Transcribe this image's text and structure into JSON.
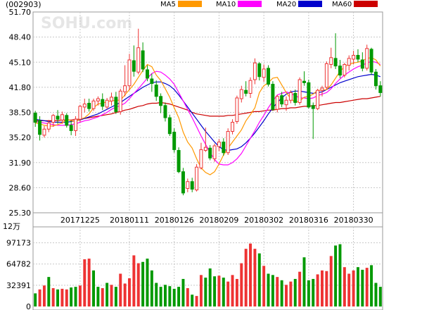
{
  "header": {
    "code": "(002903)",
    "watermark": "SOHU.com"
  },
  "legend": [
    {
      "name": "MA5",
      "color": "#ff9900"
    },
    {
      "name": "MA10",
      "color": "#ff00ff"
    },
    {
      "name": "MA20",
      "color": "#0000cc"
    },
    {
      "name": "MA60",
      "color": "#cc0000"
    }
  ],
  "colors": {
    "up": "#ee3333",
    "down": "#009900"
  },
  "chart_data": [
    {
      "type": "candlestick",
      "title": "",
      "ylim": [
        25.3,
        51.7
      ],
      "y_ticks": [
        "51.70",
        "48.40",
        "45.10",
        "41.80",
        "38.50",
        "35.20",
        "31.90",
        "28.60",
        "25.30"
      ],
      "x_tick_labels": [
        "20171225",
        "20180111",
        "20180126",
        "20180209",
        "20180302",
        "20180316",
        "20180330"
      ],
      "x_tick_index": [
        10,
        21,
        31,
        41,
        51,
        61,
        71
      ],
      "grid": true,
      "candles": [
        [
          38.4,
          38.7,
          36.6,
          37.2
        ],
        [
          37.4,
          38.0,
          34.8,
          35.6
        ],
        [
          35.5,
          36.7,
          35.2,
          36.3
        ],
        [
          36.3,
          37.5,
          35.9,
          37.1
        ],
        [
          37.2,
          38.3,
          36.6,
          38.1
        ],
        [
          38.0,
          38.8,
          37.0,
          37.6
        ],
        [
          37.5,
          38.6,
          37.0,
          38.2
        ],
        [
          38.1,
          38.4,
          36.5,
          36.8
        ],
        [
          36.8,
          37.4,
          35.5,
          36.1
        ],
        [
          36.1,
          38.0,
          35.4,
          37.6
        ],
        [
          37.6,
          39.5,
          37.2,
          39.3
        ],
        [
          39.2,
          40.3,
          38.5,
          39.6
        ],
        [
          39.7,
          40.3,
          38.6,
          39.0
        ],
        [
          39.0,
          40.3,
          38.7,
          40.0
        ],
        [
          40.0,
          40.6,
          39.4,
          40.3
        ],
        [
          40.2,
          41.0,
          38.8,
          39.3
        ],
        [
          39.2,
          40.4,
          38.9,
          40.1
        ],
        [
          40.0,
          41.1,
          39.4,
          40.5
        ],
        [
          40.5,
          41.2,
          38.3,
          38.6
        ],
        [
          38.6,
          41.6,
          38.2,
          41.3
        ],
        [
          41.2,
          44.7,
          40.6,
          42.0
        ],
        [
          42.0,
          46.2,
          41.4,
          45.4
        ],
        [
          45.3,
          47.3,
          43.2,
          43.9
        ],
        [
          43.8,
          49.5,
          43.5,
          47.0
        ],
        [
          46.6,
          47.7,
          43.8,
          44.2
        ],
        [
          44.1,
          44.7,
          42.6,
          43.0
        ],
        [
          42.9,
          43.6,
          41.2,
          42.3
        ],
        [
          42.1,
          42.7,
          40.0,
          40.6
        ],
        [
          40.6,
          41.0,
          38.4,
          39.4
        ],
        [
          39.4,
          39.8,
          37.3,
          37.8
        ],
        [
          37.8,
          38.2,
          35.4,
          35.7
        ],
        [
          35.9,
          36.4,
          33.2,
          33.6
        ],
        [
          33.5,
          33.9,
          30.5,
          30.7
        ],
        [
          30.7,
          31.2,
          27.6,
          27.9
        ],
        [
          28.5,
          29.8,
          28.0,
          29.4
        ],
        [
          29.4,
          29.9,
          28.0,
          28.4
        ],
        [
          28.3,
          31.7,
          28.1,
          31.3
        ],
        [
          31.2,
          34.5,
          31.0,
          33.6
        ],
        [
          33.5,
          36.5,
          33.3,
          33.9
        ],
        [
          33.8,
          34.2,
          32.2,
          32.5
        ],
        [
          32.4,
          34.4,
          32.0,
          34.1
        ],
        [
          34.0,
          35.0,
          33.4,
          34.6
        ],
        [
          34.6,
          35.1,
          32.8,
          33.2
        ],
        [
          33.2,
          36.4,
          32.9,
          36.0
        ],
        [
          36.0,
          37.6,
          35.6,
          37.2
        ],
        [
          37.3,
          40.7,
          37.0,
          40.4
        ],
        [
          40.3,
          42.0,
          39.8,
          41.5
        ],
        [
          41.4,
          42.6,
          40.6,
          41.0
        ],
        [
          41.0,
          43.1,
          40.4,
          42.7
        ],
        [
          42.8,
          45.6,
          42.2,
          45.0
        ],
        [
          44.9,
          45.1,
          42.7,
          43.2
        ],
        [
          43.1,
          44.8,
          42.5,
          44.2
        ],
        [
          44.3,
          44.7,
          41.9,
          42.2
        ],
        [
          42.2,
          42.6,
          38.7,
          38.9
        ],
        [
          38.9,
          40.8,
          38.5,
          40.6
        ],
        [
          40.7,
          41.2,
          39.2,
          39.6
        ],
        [
          39.5,
          40.6,
          38.7,
          40.1
        ],
        [
          40.1,
          41.4,
          39.7,
          41.1
        ],
        [
          41.0,
          41.5,
          39.4,
          39.8
        ],
        [
          39.8,
          43.1,
          39.5,
          42.8
        ],
        [
          42.6,
          43.9,
          42.0,
          42.4
        ],
        [
          42.4,
          42.8,
          39.0,
          39.2
        ],
        [
          39.4,
          39.8,
          35.0,
          39.0
        ],
        [
          39.0,
          41.6,
          38.8,
          41.4
        ],
        [
          41.4,
          42.0,
          40.6,
          41.7
        ],
        [
          41.8,
          45.2,
          41.5,
          44.9
        ],
        [
          44.8,
          47.0,
          44.3,
          45.7
        ],
        [
          45.6,
          48.9,
          44.2,
          44.6
        ],
        [
          44.6,
          45.4,
          43.0,
          43.4
        ],
        [
          43.4,
          45.0,
          43.1,
          44.8
        ],
        [
          44.7,
          46.0,
          44.0,
          45.6
        ],
        [
          45.5,
          46.6,
          44.8,
          46.0
        ],
        [
          46.0,
          46.8,
          45.1,
          45.5
        ],
        [
          45.4,
          46.4,
          43.9,
          44.3
        ],
        [
          44.3,
          47.4,
          44.0,
          46.9
        ],
        [
          46.8,
          47.0,
          43.4,
          43.8
        ],
        [
          43.8,
          44.2,
          41.5,
          42.0
        ],
        [
          42.0,
          42.6,
          40.6,
          41.1
        ]
      ],
      "ma5": [
        37.1,
        37.0,
        36.8,
        36.7,
        36.7,
        36.9,
        37.1,
        37.6,
        37.4,
        37.3,
        37.6,
        37.8,
        38.3,
        39.1,
        39.6,
        39.7,
        39.9,
        40.0,
        40.1,
        40.1,
        40.8,
        41.5,
        42.2,
        43.1,
        44.0,
        44.8,
        44.5,
        43.4,
        42.7,
        41.6,
        40.5,
        39.1,
        37.8,
        35.9,
        34.6,
        33.8,
        32.4,
        31.2,
        30.6,
        30.3,
        30.7,
        31.7,
        32.9,
        33.8,
        34.6,
        35.4,
        36.2,
        37.4,
        38.2,
        39.1,
        41.1,
        42.0,
        42.4,
        43.0,
        43.1,
        42.1,
        41.1,
        40.3,
        39.8,
        40.0,
        40.5,
        40.6,
        40.9,
        41.4,
        41.4,
        41.5,
        42.1,
        43.0,
        43.9,
        44.5,
        44.8,
        45.0,
        45.1,
        45.3,
        45.6,
        45.7,
        45.4,
        44.6
      ],
      "ma10": [
        37.3,
        37.2,
        37.1,
        37.0,
        36.9,
        36.8,
        36.8,
        36.8,
        36.9,
        37.0,
        37.2,
        37.4,
        37.5,
        37.7,
        37.9,
        38.2,
        38.5,
        38.9,
        39.2,
        39.4,
        39.7,
        40.3,
        41.0,
        41.6,
        42.3,
        43.0,
        43.6,
        43.9,
        43.8,
        43.4,
        42.9,
        42.2,
        41.1,
        40.0,
        38.9,
        37.8,
        36.6,
        35.4,
        34.3,
        33.2,
        32.3,
        31.7,
        31.6,
        31.6,
        31.9,
        32.4,
        33.1,
        34.1,
        35.1,
        36.1,
        37.2,
        38.1,
        39.1,
        40.0,
        40.8,
        41.0,
        41.2,
        41.0,
        40.7,
        40.4,
        40.4,
        40.3,
        40.4,
        40.7,
        40.9,
        41.1,
        41.6,
        42.3,
        42.9,
        43.4,
        43.8,
        44.2,
        44.5,
        44.7,
        45.0,
        45.2,
        45.1,
        44.8
      ],
      "ma20": [
        37.6,
        37.5,
        37.4,
        37.3,
        37.2,
        37.2,
        37.2,
        37.2,
        37.3,
        37.4,
        37.5,
        37.7,
        37.9,
        38.1,
        38.3,
        38.6,
        38.9,
        39.2,
        39.5,
        39.8,
        40.2,
        40.6,
        41.0,
        41.4,
        41.8,
        42.1,
        42.4,
        42.5,
        42.5,
        42.3,
        42.0,
        41.5,
        40.8,
        40.0,
        39.2,
        38.4,
        37.6,
        36.8,
        36.0,
        35.3,
        34.6,
        34.0,
        33.6,
        33.5,
        33.6,
        33.7,
        34.0,
        34.5,
        35.1,
        35.8,
        36.6,
        37.4,
        38.3,
        39.1,
        39.8,
        40.4,
        40.9,
        41.2,
        41.3,
        41.3,
        41.2,
        41.1,
        41.0,
        41.1,
        41.2,
        41.5,
        41.8,
        42.1,
        42.4,
        42.6,
        42.8,
        43.0,
        43.2,
        43.3,
        43.4,
        43.5,
        43.4,
        43.2
      ],
      "ma60": [
        37.4,
        37.4,
        37.4,
        37.4,
        37.4,
        37.4,
        37.5,
        37.5,
        37.5,
        37.6,
        37.6,
        37.7,
        37.8,
        37.9,
        38.0,
        38.1,
        38.2,
        38.3,
        38.5,
        38.6,
        38.8,
        38.9,
        39.1,
        39.3,
        39.4,
        39.6,
        39.7,
        39.7,
        39.8,
        39.7,
        39.6,
        39.4,
        39.2,
        39.0,
        38.8,
        38.5,
        38.3,
        38.2,
        38.1,
        38.0,
        38.0,
        38.0,
        38.0,
        38.1,
        38.1,
        38.2,
        38.3,
        38.4,
        38.5,
        38.6,
        38.6,
        38.7,
        38.8,
        38.8,
        38.9,
        39.0,
        39.0,
        39.1,
        39.1,
        39.2,
        39.3,
        39.3,
        39.4,
        39.4,
        39.5,
        39.6,
        39.7,
        39.8,
        39.8,
        39.9,
        40.0,
        40.1,
        40.2,
        40.3,
        40.3,
        40.4,
        40.5,
        40.6
      ]
    },
    {
      "type": "bar",
      "title": "",
      "unit": "12万",
      "y_ticks": [
        "97173",
        "64782",
        "32391",
        "0"
      ],
      "ylim": [
        0,
        121466
      ],
      "grid": true,
      "volumes": [
        20000,
        26000,
        32000,
        45000,
        28000,
        26000,
        27000,
        26000,
        29000,
        30000,
        32000,
        72000,
        73000,
        55000,
        30000,
        28000,
        36000,
        33000,
        30000,
        50000,
        35000,
        43000,
        78000,
        66000,
        68000,
        73000,
        55000,
        36000,
        30000,
        33000,
        31000,
        27000,
        30000,
        42000,
        28000,
        18000,
        16000,
        48000,
        44000,
        58000,
        46000,
        47000,
        44000,
        38000,
        48000,
        42000,
        66000,
        88000,
        96000,
        88000,
        81000,
        62000,
        50000,
        48000,
        45000,
        40000,
        33000,
        38000,
        42000,
        53000,
        75000,
        40000,
        42000,
        49000,
        55000,
        54000,
        77000,
        93000,
        95000,
        60000,
        50000,
        55000,
        60000,
        56000,
        59000,
        63000,
        36000,
        30000
      ],
      "volume_up": [
        false,
        true,
        true,
        false,
        true,
        false,
        true,
        true,
        false,
        false,
        true,
        true,
        true,
        false,
        false,
        true,
        false,
        true,
        false,
        true,
        true,
        true,
        true,
        true,
        false,
        false,
        false,
        false,
        false,
        false,
        false,
        false,
        false,
        false,
        true,
        false,
        true,
        true,
        false,
        false,
        false,
        true,
        false,
        true,
        true,
        true,
        true,
        true,
        true,
        true,
        false,
        true,
        false,
        false,
        true,
        false,
        true,
        true,
        false,
        true,
        false,
        false,
        false,
        true,
        true,
        true,
        true,
        false,
        false,
        true,
        true,
        true,
        false,
        false,
        true,
        false,
        false,
        false
      ]
    }
  ]
}
